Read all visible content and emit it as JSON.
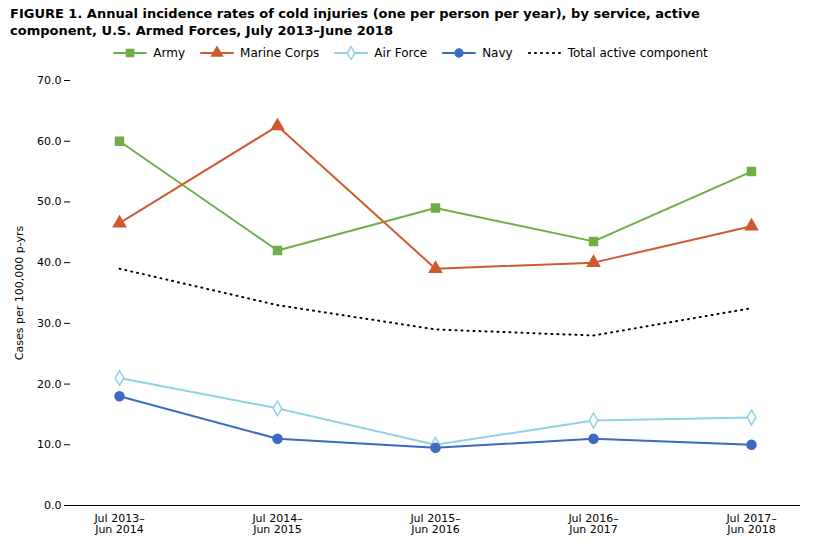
{
  "chart_data": {
    "type": "line",
    "title": "FIGURE 1. Annual incidence rates of cold injuries (one per person per year), by service, active\ncomponent, U.S. Armed Forces, July 2013–June 2018",
    "categories": [
      "Jul 2013–\nJun 2014",
      "Jul 2014–\nJun 2015",
      "Jul 2015–\nJun 2016",
      "Jul 2016–\nJun 2017",
      "Jul 2017–\nJun 2018"
    ],
    "series": [
      {
        "name": "Army",
        "color": "#70ad47",
        "marker": "square",
        "line_style": "solid",
        "values": [
          60.0,
          42.0,
          49.0,
          43.5,
          55.0
        ]
      },
      {
        "name": "Marine Corps",
        "color": "#d05a30",
        "marker": "triangle",
        "line_style": "solid",
        "values": [
          46.5,
          62.5,
          39.0,
          40.0,
          46.0
        ]
      },
      {
        "name": "Air Force",
        "color": "#92d0e8",
        "marker": "diamond-open",
        "line_style": "solid",
        "values": [
          21.0,
          16.0,
          10.0,
          14.0,
          14.5
        ]
      },
      {
        "name": "Navy",
        "color": "#3b6abf",
        "marker": "circle",
        "line_style": "solid",
        "values": [
          18.0,
          11.0,
          9.5,
          11.0,
          10.0
        ]
      },
      {
        "name": "Total active component",
        "color": "#000000",
        "line_style": "dotted",
        "values": [
          39.0,
          33.0,
          29.0,
          28.0,
          32.5
        ]
      }
    ],
    "ylabel": "Cases per 100,000 p-yrs",
    "ylim": [
      0,
      70
    ],
    "yticks": [
      {
        "value": 0,
        "label": "0.0"
      },
      {
        "value": 10,
        "label": "10.0"
      },
      {
        "value": 20,
        "label": "20.0"
      },
      {
        "value": 30,
        "label": "30.0"
      },
      {
        "value": 40,
        "label": "40.0"
      },
      {
        "value": 50,
        "label": "50.0"
      },
      {
        "value": 60,
        "label": "60.0"
      },
      {
        "value": 70,
        "label": "70.0"
      }
    ],
    "grid": false,
    "legend": "top"
  }
}
